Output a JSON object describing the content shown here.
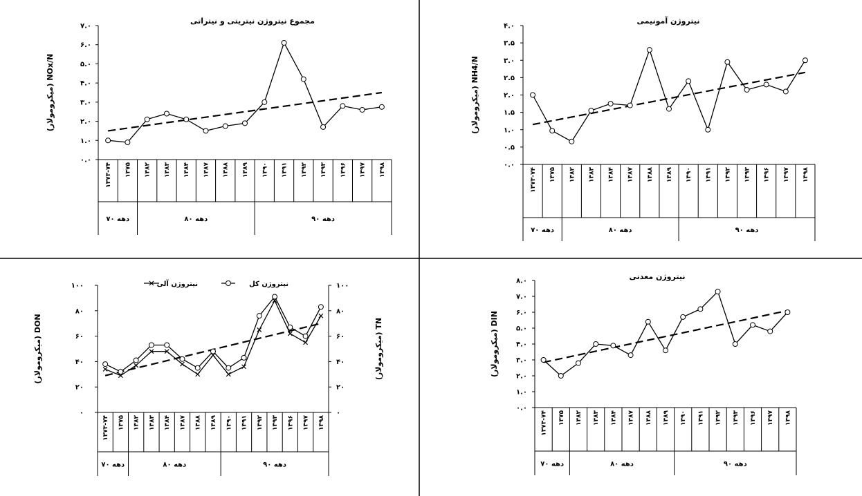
{
  "categories": [
    "۱۳۷۳-۷۴",
    "۱۳۷۵",
    "۱۳۸۲",
    "۱۳۸۳",
    "۱۳۸۴",
    "۱۳۸۷",
    "۱۳۸۸",
    "۱۳۸۹",
    "۱۳۹۰",
    "۱۳۹۱",
    "۱۳۹۲",
    "۱۳۹۳",
    "۱۳۹۶",
    "۱۳۹۷",
    "۱۳۹۸"
  ],
  "decades": [
    {
      "label": "دهه ۷۰",
      "from": 0,
      "to": 1
    },
    {
      "label": "دهه ۸۰",
      "from": 2,
      "to": 7
    },
    {
      "label": "دهه ۹۰",
      "from": 8,
      "to": 14
    }
  ],
  "chart_data": [
    {
      "type": "line",
      "title": "مجموع نیتروژن نیتریتی و نیتراتی",
      "ylabel": "(میکرومولار) NOx/N",
      "ylim": [
        0,
        7
      ],
      "yticks": [
        0,
        1,
        2,
        3,
        4,
        5,
        6,
        7
      ],
      "ytick_labels": [
        "۰.۰",
        "۱.۰",
        "۲.۰",
        "۳.۰",
        "۴.۰",
        "۵.۰",
        "۶.۰",
        "۷.۰"
      ],
      "series": [
        {
          "values": [
            1.0,
            0.9,
            2.1,
            2.4,
            2.1,
            1.5,
            1.75,
            1.9,
            3.0,
            6.1,
            4.2,
            1.7,
            2.8,
            2.6,
            2.75
          ],
          "marker": "circle",
          "style": "solid"
        }
      ],
      "trend": {
        "start": 1.5,
        "end": 3.5
      }
    },
    {
      "type": "line",
      "title": "نیتروژن آمونیمی",
      "ylabel": "(میکرومولار) NH4/N",
      "ylim": [
        0,
        4
      ],
      "yticks": [
        0,
        0.5,
        1,
        1.5,
        2,
        2.5,
        3,
        3.5,
        4
      ],
      "ytick_labels": [
        "۰.۰",
        "۰.۵",
        "۱.۰",
        "۱.۵",
        "۲.۰",
        "۲.۵",
        "۳.۰",
        "۳.۵",
        "۴.۰"
      ],
      "series": [
        {
          "values": [
            2.0,
            0.97,
            0.66,
            1.55,
            1.75,
            1.7,
            3.3,
            1.6,
            2.4,
            1.0,
            2.95,
            2.15,
            2.3,
            2.1,
            3.0
          ],
          "marker": "circle",
          "style": "solid"
        }
      ],
      "trend": {
        "start": 1.15,
        "end": 2.65
      }
    },
    {
      "type": "line",
      "title": "",
      "ylabel": "(میکرومولار) DON",
      "ylabel_right": "(میکرومولار) TN",
      "ylim": [
        0,
        100
      ],
      "yticks": [
        0,
        20,
        40,
        60,
        80,
        100
      ],
      "ytick_labels": [
        "۰",
        "۲۰",
        "۴۰",
        "۶۰",
        "۸۰",
        "۱۰۰"
      ],
      "series": [
        {
          "name": "نیتروژن کل",
          "values": [
            38,
            32,
            41,
            53,
            53,
            42,
            35,
            48,
            35,
            43,
            76,
            91,
            67,
            60,
            83
          ],
          "marker": "circle",
          "style": "solid"
        },
        {
          "name": "نیتروژن آلی",
          "values": [
            34,
            29,
            37,
            48,
            48,
            38,
            30,
            45,
            30,
            36,
            65,
            88,
            62,
            55,
            76
          ],
          "marker": "x",
          "style": "solid"
        }
      ],
      "trend": {
        "start": 29,
        "end": 70
      }
    },
    {
      "type": "line",
      "title": "نیتروژن معدنی",
      "ylabel": "(میکرومولار) DIN",
      "ylim": [
        0,
        8
      ],
      "yticks": [
        0,
        1,
        2,
        3,
        4,
        5,
        6,
        7,
        8
      ],
      "ytick_labels": [
        "۰.۰",
        "۱.۰",
        "۲.۰",
        "۳.۰",
        "۴.۰",
        "۵.۰",
        "۶.۰",
        "۷.۰",
        "۸.۰"
      ],
      "series": [
        {
          "values": [
            3.0,
            2.0,
            2.8,
            4.0,
            3.9,
            3.3,
            5.4,
            3.6,
            5.7,
            6.2,
            7.3,
            4.0,
            5.2,
            4.8,
            6.0
          ],
          "marker": "circle",
          "style": "solid"
        }
      ],
      "trend": {
        "start": 2.85,
        "end": 6.1
      }
    }
  ]
}
